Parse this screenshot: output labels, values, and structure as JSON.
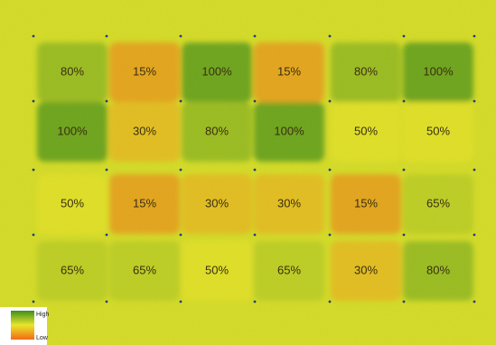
{
  "legend": {
    "high_label": "High",
    "low_label": "Low",
    "colors": {
      "high": "#3f8f1c",
      "mid": "#e9e62a",
      "low": "#f26a16"
    }
  },
  "grid": {
    "rows": [
      [
        "80%",
        "15%",
        "100%",
        "15%",
        "80%",
        "100%"
      ],
      [
        "100%",
        "30%",
        "80%",
        "100%",
        "50%",
        "50%"
      ],
      [
        "50%",
        "15%",
        "30%",
        "30%",
        "15%",
        "65%"
      ],
      [
        "65%",
        "65%",
        "50%",
        "65%",
        "30%",
        "80%"
      ]
    ]
  }
}
